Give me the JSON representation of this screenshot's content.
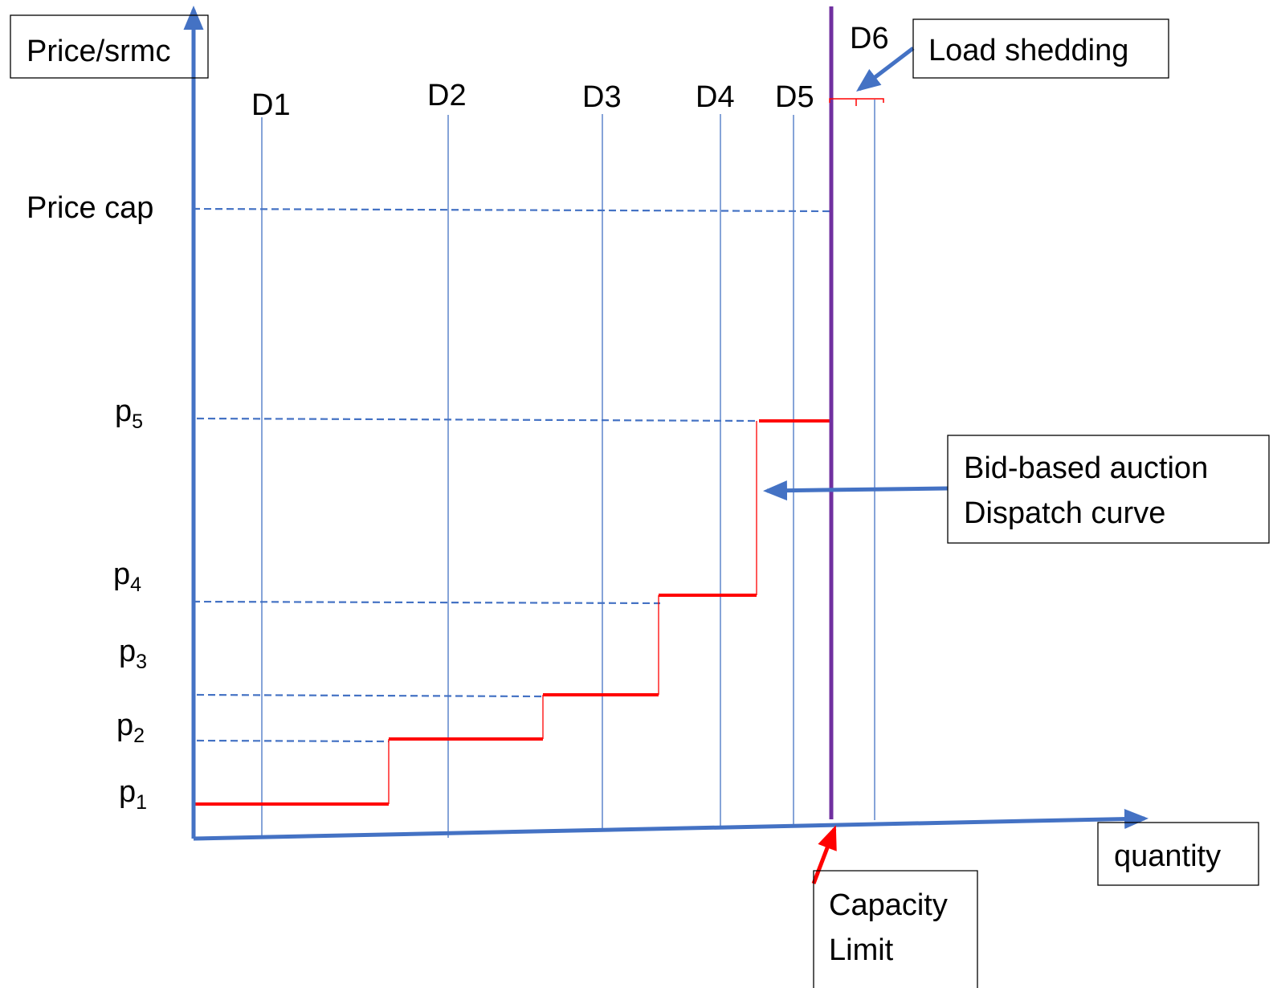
{
  "labels": {
    "y_axis": "Price/srmc",
    "x_axis": "quantity",
    "price_cap": "Price cap",
    "load_shedding": "Load shedding",
    "bid_line1": "Bid-based auction",
    "bid_line2": "Dispatch curve",
    "capacity_line1": "Capacity",
    "capacity_line2": "Limit"
  },
  "demand_labels": [
    "D1",
    "D2",
    "D3",
    "D4",
    "D5",
    "D6"
  ],
  "price_levels": [
    {
      "base": "p",
      "sub": "5"
    },
    {
      "base": "p",
      "sub": "4"
    },
    {
      "base": "p",
      "sub": "3"
    },
    {
      "base": "p",
      "sub": "2"
    },
    {
      "base": "p",
      "sub": "1"
    }
  ],
  "colors": {
    "axis": "#4472C4",
    "demand_line": "#4472C4",
    "dashed": "#4472C4",
    "supply_curve": "#FF0000",
    "capacity_line": "#7030A0",
    "capacity_arrow": "#FF0000"
  }
}
